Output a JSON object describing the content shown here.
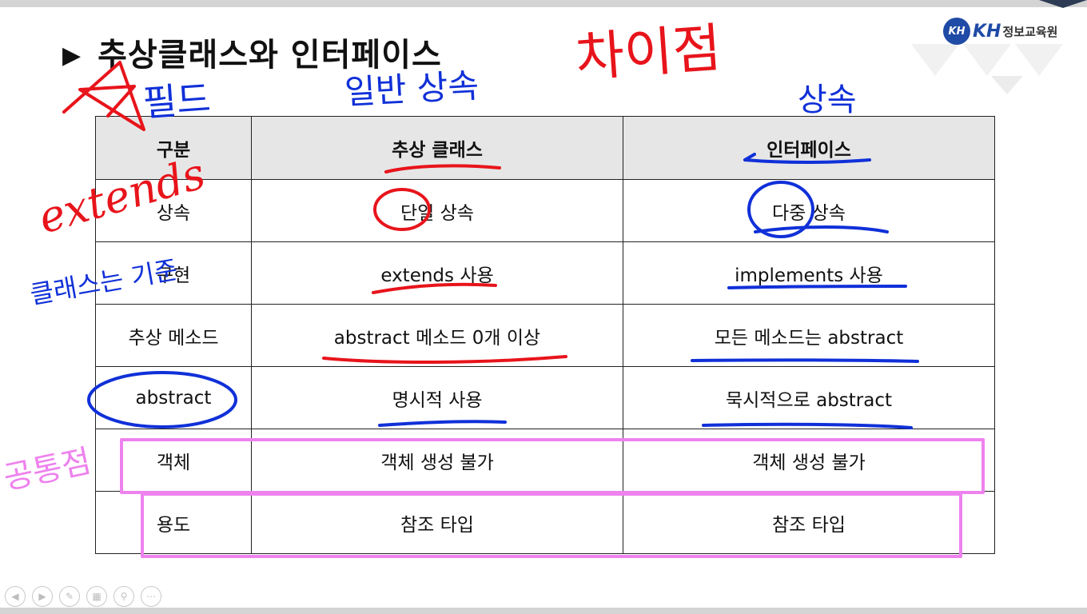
{
  "slide": {
    "title": "추상클래스와 인터페이스",
    "title_marker": "▶",
    "logo": {
      "mark": "KH",
      "brand": "KH",
      "org": "정보교육원"
    }
  },
  "table": {
    "headers": [
      "구분",
      "추상 클래스",
      "인터페이스"
    ],
    "rows": [
      [
        "상속",
        "단일 상속",
        "다중 상속"
      ],
      [
        "구현",
        "extends 사용",
        "implements 사용"
      ],
      [
        "추상 메소드",
        "abstract 메소드 0개 이상",
        "모든 메소드는 abstract"
      ],
      [
        "abstract",
        "명시적 사용",
        "묵시적으로 abstract"
      ],
      [
        "객체",
        "객체 생성 불가",
        "객체 생성 불가"
      ],
      [
        "용도",
        "참조 타입",
        "참조 타입"
      ]
    ]
  },
  "annotations": {
    "difference": "차이점",
    "field": "필드",
    "general_inheritance": "일반 상속",
    "inheritance": "상속",
    "extends": "extends",
    "class_criterion": "클래스는 기준",
    "common_point": "공통점"
  },
  "colors": {
    "red_ink": "#e8141b",
    "blue_ink": "#1030d8",
    "pink_ink": "#ee82ee",
    "header_bg": "#e6e6e6",
    "logo_blue": "#1f4aa5"
  },
  "controls": [
    "prev-icon",
    "next-icon",
    "pen-icon",
    "slides-icon",
    "zoom-icon",
    "more-icon"
  ]
}
